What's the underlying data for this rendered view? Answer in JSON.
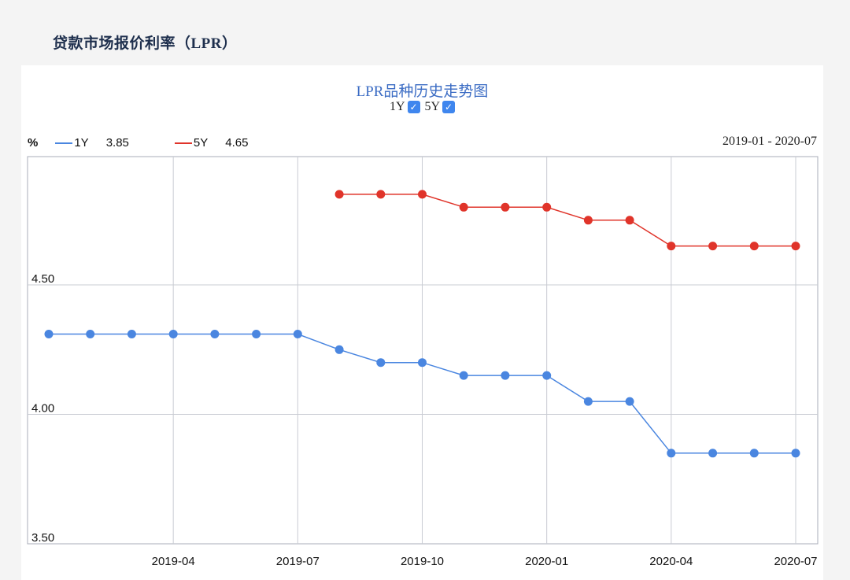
{
  "page": {
    "title": "贷款市场报价利率（LPR）"
  },
  "chart_header": {
    "title": "LPR品种历史走势图",
    "toggles": [
      {
        "label": "1Y",
        "checked": true
      },
      {
        "label": "5Y",
        "checked": true
      }
    ],
    "check_glyph": "✓"
  },
  "legend": {
    "unit": "%",
    "items": [
      {
        "name": "1Y",
        "value": "3.85",
        "color": "#4a86e0"
      },
      {
        "name": "5Y",
        "value": "4.65",
        "color": "#e0342a"
      }
    ]
  },
  "date_range": "2019-01 - 2020-07",
  "chart_data": {
    "type": "line",
    "title": "LPR品种历史走势图",
    "ylabel": "%",
    "ylim": [
      3.5,
      5.0
    ],
    "yticks": [
      "4.50",
      "4.00",
      "3.50"
    ],
    "ytick_values": [
      4.5,
      4.0,
      3.5
    ],
    "xticks": [
      "2019-04",
      "2019-07",
      "2019-10",
      "2020-01",
      "2020-04",
      "2020-07"
    ],
    "xtick_months": [
      3,
      6,
      9,
      12,
      15,
      18
    ],
    "x_months_range": [
      0,
      18
    ],
    "x": [
      "2019-01",
      "2019-02",
      "2019-03",
      "2019-04",
      "2019-05",
      "2019-06",
      "2019-07",
      "2019-08",
      "2019-09",
      "2019-10",
      "2019-11",
      "2019-12",
      "2020-01",
      "2020-02",
      "2020-03",
      "2020-04",
      "2020-05",
      "2020-06",
      "2020-07"
    ],
    "series": [
      {
        "name": "1Y",
        "color": "#4a86e0",
        "values": [
          4.31,
          4.31,
          4.31,
          4.31,
          4.31,
          4.31,
          4.31,
          4.25,
          4.2,
          4.2,
          4.15,
          4.15,
          4.15,
          4.05,
          4.05,
          3.85,
          3.85,
          3.85,
          3.85
        ]
      },
      {
        "name": "5Y",
        "color": "#e0342a",
        "values": [
          null,
          null,
          null,
          null,
          null,
          null,
          null,
          4.85,
          4.85,
          4.85,
          4.8,
          4.8,
          4.8,
          4.75,
          4.75,
          4.65,
          4.65,
          4.65,
          4.65
        ]
      }
    ]
  }
}
